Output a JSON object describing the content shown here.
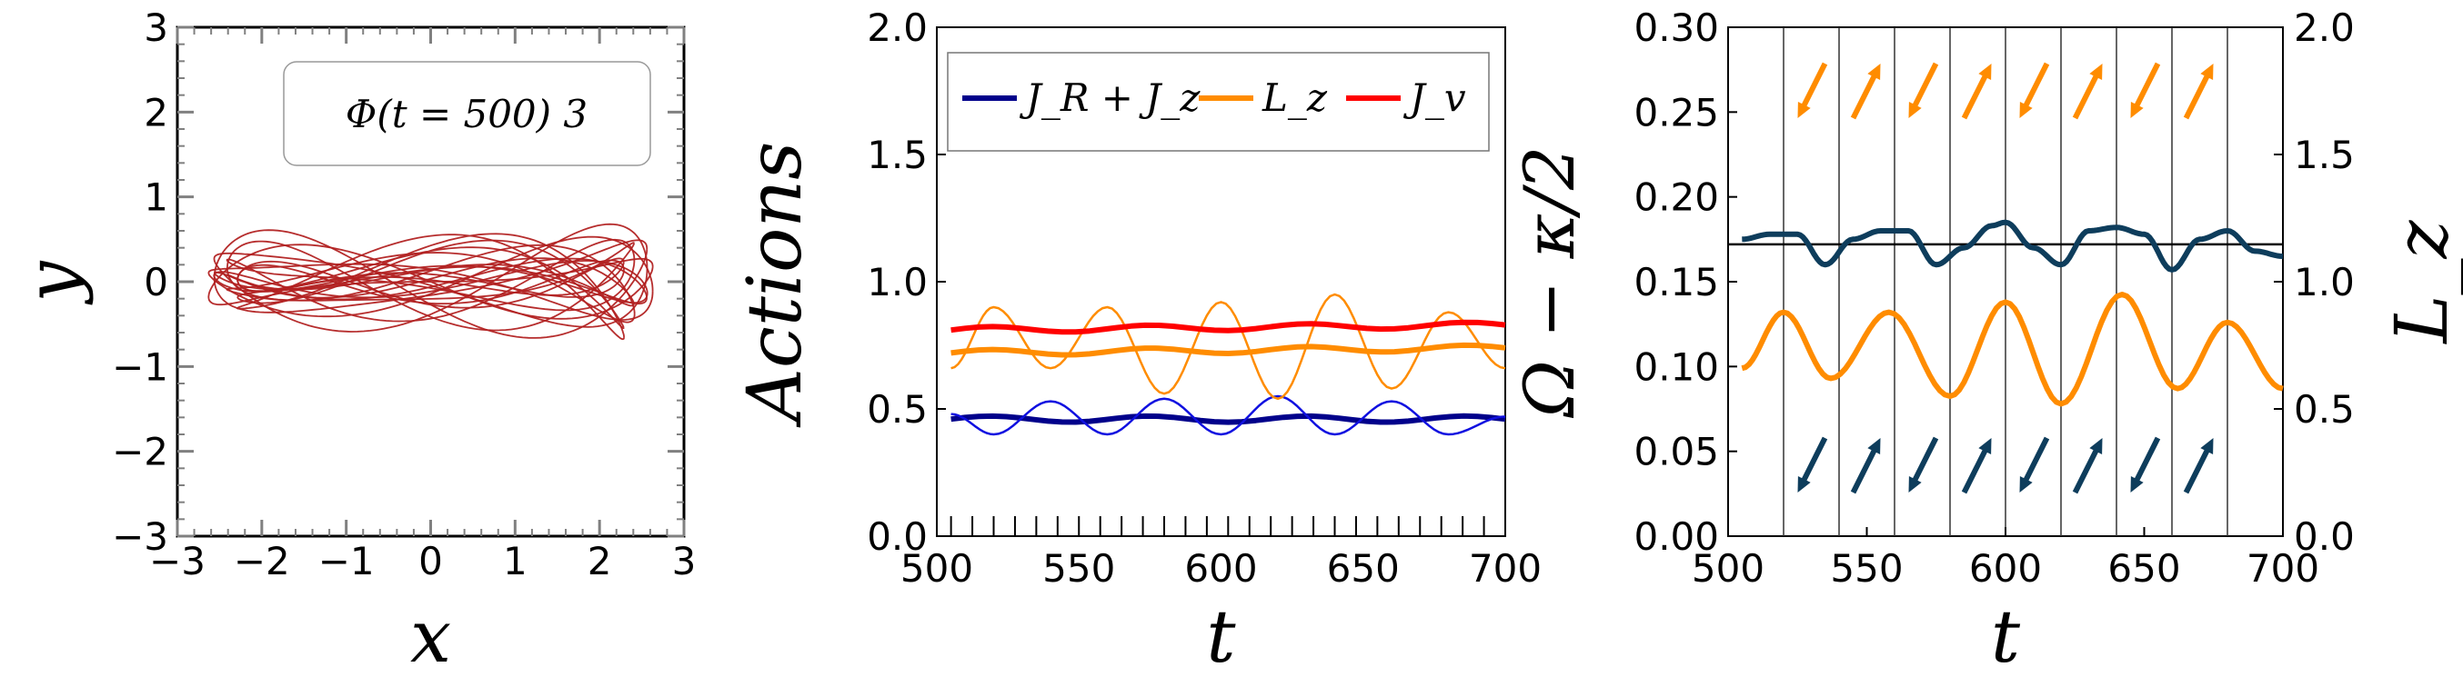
{
  "colors": {
    "orbit": "#b22222",
    "jr_jz": "#00008b",
    "jr_jz_thin": "#1010e0",
    "lz": "#ff8c00",
    "jv": "#ff0000",
    "omega": "#0e3d5c",
    "frame": "#000000",
    "tickgray": "#808080"
  },
  "panel1": {
    "box_label": "Φ(t = 500) 3",
    "xlabel": "x",
    "ylabel": "y"
  },
  "panel2": {
    "ylabel": "Actions",
    "xlabel": "t",
    "legend": [
      "J_R + J_z",
      "L_z",
      "J_v"
    ]
  },
  "panel3": {
    "ylabel_left": "Ω − κ/2",
    "ylabel_right": "L_z",
    "xlabel": "t",
    "hline": 0.172
  },
  "chart_data": [
    {
      "type": "line",
      "title": "",
      "subtitle": "Φ(t = 500) 3",
      "xlabel": "x",
      "ylabel": "y",
      "xlim": [
        -3,
        3
      ],
      "ylim": [
        -3,
        3
      ],
      "xticks": [
        -3,
        -2,
        -1,
        0,
        1,
        2,
        3
      ],
      "yticks": [
        -3,
        -2,
        -1,
        0,
        1,
        2,
        3
      ],
      "series": [
        {
          "description_free": true,
          "x": [
            -2.6,
            -2.4,
            -2.0,
            -1.5,
            -1.0,
            -0.5,
            0.0,
            0.5,
            1.0,
            1.5,
            2.0,
            2.4,
            2.6
          ],
          "y": [
            0.0,
            0.35,
            0.3,
            0.1,
            0.2,
            0.45,
            0.5,
            0.45,
            0.2,
            0.1,
            0.3,
            0.35,
            0.0
          ]
        }
      ]
    },
    {
      "type": "line",
      "xlabel": "t",
      "ylabel": "Actions",
      "xlim": [
        500,
        700
      ],
      "ylim": [
        0.0,
        2.0
      ],
      "xticks": [
        500,
        550,
        600,
        650,
        700
      ],
      "yticks": [
        0.0,
        0.5,
        1.0,
        1.5,
        2.0
      ],
      "legend_position": "top",
      "series": [
        {
          "name": "J_R + J_z",
          "x": [
            505,
            700
          ],
          "y": [
            0.46,
            0.46
          ]
        },
        {
          "name": "J_R + J_z",
          "x": [
            505,
            520,
            540,
            560,
            580,
            600,
            620,
            640,
            660,
            680,
            700
          ],
          "y": [
            0.48,
            0.4,
            0.53,
            0.4,
            0.54,
            0.4,
            0.55,
            0.4,
            0.53,
            0.4,
            0.47
          ]
        },
        {
          "name": "L_z",
          "x": [
            505,
            700
          ],
          "y": [
            0.72,
            0.74
          ]
        },
        {
          "name": "L_z",
          "x": [
            505,
            520,
            540,
            560,
            580,
            600,
            620,
            640,
            660,
            680,
            700
          ],
          "y": [
            0.66,
            0.9,
            0.66,
            0.9,
            0.56,
            0.92,
            0.54,
            0.95,
            0.58,
            0.88,
            0.66
          ]
        },
        {
          "name": "J_v",
          "x": [
            505,
            700
          ],
          "y": [
            0.81,
            0.83
          ]
        }
      ]
    },
    {
      "type": "line",
      "xlabel": "t",
      "ylabel": "Ω − κ/2",
      "ylabel_right": "L_z",
      "xlim": [
        500,
        700
      ],
      "ylim": [
        0.0,
        0.3
      ],
      "ylim_right": [
        0.0,
        2.0
      ],
      "xticks": [
        500,
        550,
        600,
        650,
        700
      ],
      "yticks": [
        0.0,
        0.05,
        0.1,
        0.15,
        0.2,
        0.25,
        0.3
      ],
      "yticks_right": [
        0.0,
        0.5,
        1.0,
        1.5,
        2.0
      ],
      "vlines": [
        520,
        540,
        560,
        580,
        600,
        620,
        640,
        660,
        680
      ],
      "hline": 0.172,
      "series": [
        {
          "x": [
            505,
            515,
            525,
            535,
            545,
            555,
            565,
            575,
            585,
            595,
            600,
            610,
            620,
            630,
            640,
            650,
            660,
            670,
            680,
            690,
            700
          ],
          "y": [
            0.175,
            0.178,
            0.178,
            0.16,
            0.175,
            0.18,
            0.18,
            0.16,
            0.17,
            0.183,
            0.185,
            0.17,
            0.16,
            0.18,
            0.182,
            0.178,
            0.157,
            0.175,
            0.18,
            0.168,
            0.165
          ]
        },
        {
          "x": [
            505,
            520,
            537,
            558,
            580,
            600,
            620,
            642,
            662,
            680,
            700
          ],
          "y": [
            0.66,
            0.88,
            0.62,
            0.88,
            0.55,
            0.92,
            0.52,
            0.95,
            0.58,
            0.84,
            0.58
          ]
        }
      ]
    }
  ]
}
